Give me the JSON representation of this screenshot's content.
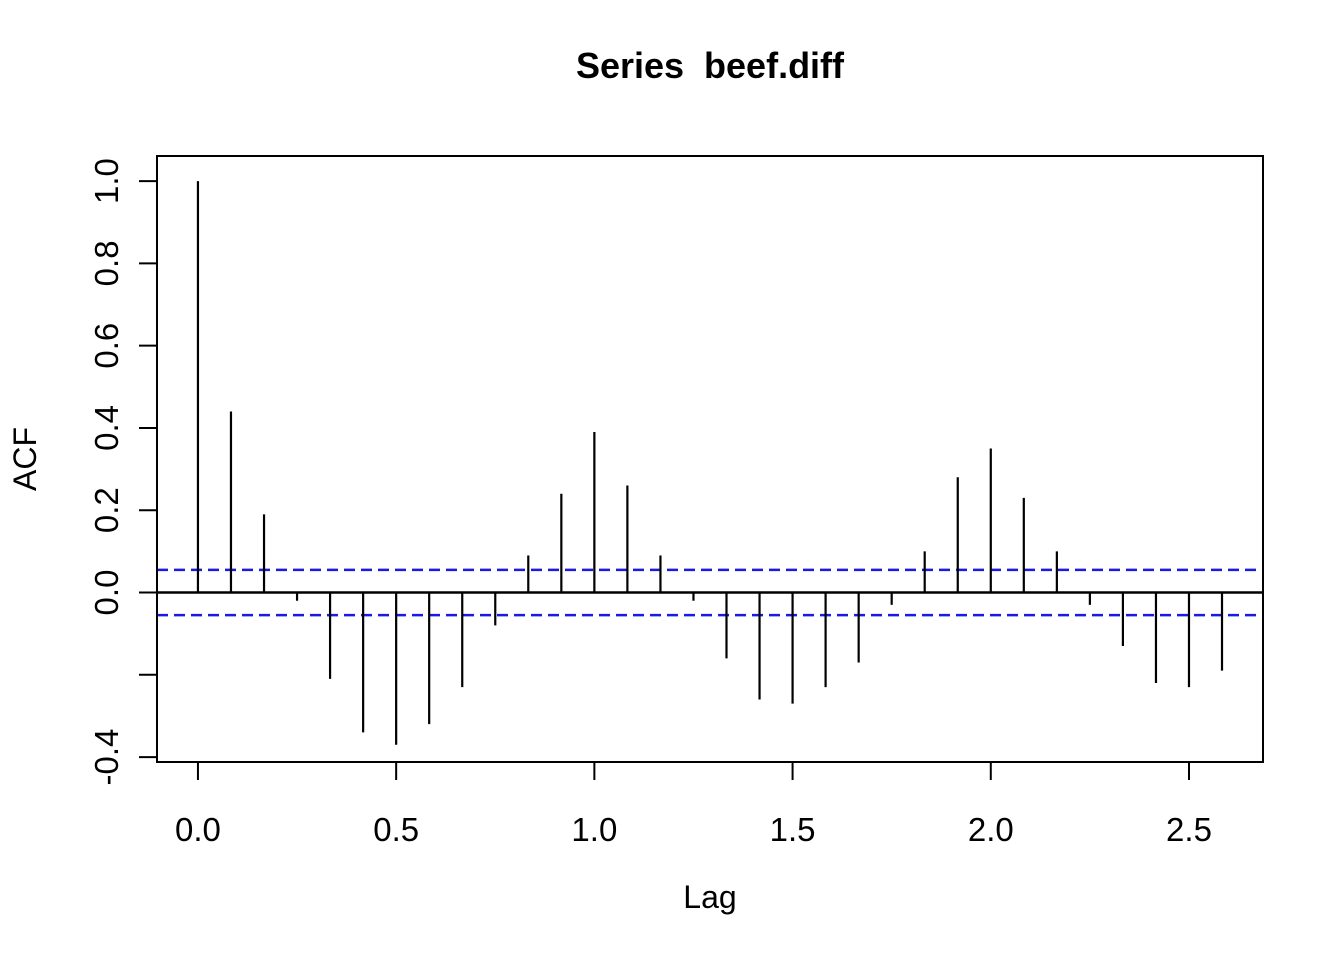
{
  "chart_data": {
    "type": "bar",
    "subtype": "acf-stem-plot",
    "title": "Series  beef.diff",
    "xlabel": "Lag",
    "ylabel": "ACF",
    "x": [
      0.0,
      0.0833,
      0.1667,
      0.25,
      0.3333,
      0.4167,
      0.5,
      0.5833,
      0.6667,
      0.75,
      0.8333,
      0.9167,
      1.0,
      1.0833,
      1.1667,
      1.25,
      1.3333,
      1.4167,
      1.5,
      1.5833,
      1.6667,
      1.75,
      1.8333,
      1.9167,
      2.0,
      2.0833,
      2.1667,
      2.25,
      2.3333,
      2.4167,
      2.5,
      2.5833
    ],
    "values": [
      1.0,
      0.44,
      0.19,
      -0.02,
      -0.21,
      -0.34,
      -0.37,
      -0.32,
      -0.23,
      -0.08,
      0.09,
      0.24,
      0.39,
      0.26,
      0.09,
      -0.02,
      -0.16,
      -0.26,
      -0.27,
      -0.23,
      -0.17,
      -0.03,
      0.1,
      0.28,
      0.35,
      0.23,
      0.1,
      -0.03,
      -0.13,
      -0.22,
      -0.23,
      -0.19
    ],
    "confidence_bounds": [
      -0.055,
      0.055
    ],
    "confidence_line_style": "dashed",
    "zero_line": 0.0,
    "x_ticks": [
      0.0,
      0.5,
      1.0,
      1.5,
      2.0,
      2.5
    ],
    "x_tick_labels": [
      "0.0",
      "0.5",
      "1.0",
      "1.5",
      "2.0",
      "2.5"
    ],
    "y_ticks": [
      1.0,
      0.8,
      0.6,
      0.4,
      0.2,
      0.0,
      -0.2,
      -0.4
    ],
    "y_tick_labels": [
      "1.0",
      "0.8",
      "0.6",
      "0.4",
      "0.2",
      "0.0",
      "",
      "-0.4"
    ],
    "xlim": [
      -0.1033,
      2.6867
    ],
    "ylim": [
      -0.412,
      1.061
    ],
    "grid": false,
    "legend": null,
    "colors": {
      "spike": "#000000",
      "axis": "#000000",
      "confidence": "#1a1ae0",
      "background": "#ffffff",
      "text": "#000000"
    }
  }
}
